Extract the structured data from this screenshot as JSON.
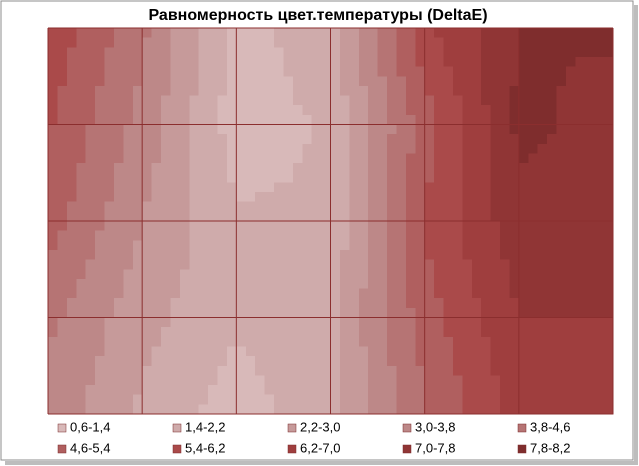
{
  "chart_data": {
    "type": "contour",
    "title": "Равномерность цвет.температуры (DeltaE)",
    "levels": [
      0.6,
      1.4,
      2.2,
      3.0,
      3.8,
      4.6,
      5.4,
      6.2,
      7.0,
      7.8,
      8.2
    ],
    "series": [
      {
        "name": "0,6-1,4",
        "color": "#d8b9b9"
      },
      {
        "name": "1,4-2,2",
        "color": "#cfabab"
      },
      {
        "name": "2,2-3,0",
        "color": "#c69a9a"
      },
      {
        "name": "3,0-3,8",
        "color": "#bd8888"
      },
      {
        "name": "3,8-4,6",
        "color": "#b67474"
      },
      {
        "name": "4,6-5,4",
        "color": "#b05f5f"
      },
      {
        "name": "5,4-6,2",
        "color": "#aa4a4a"
      },
      {
        "name": "6,2-7,0",
        "color": "#9f3e3e"
      },
      {
        "name": "7,0-7,8",
        "color": "#903535"
      },
      {
        "name": "7,8-8,2",
        "color": "#7f2d2d"
      }
    ],
    "z": [
      [
        6.0,
        4.0,
        1.0,
        2.0,
        6.0,
        7.8,
        7.9
      ],
      [
        5.5,
        3.5,
        1.0,
        1.5,
        5.0,
        8.0,
        7.5
      ],
      [
        5.0,
        3.0,
        1.5,
        1.5,
        5.5,
        7.5,
        7.0
      ],
      [
        4.0,
        2.5,
        1.5,
        2.0,
        5.0,
        7.0,
        7.0
      ],
      [
        3.5,
        2.0,
        1.0,
        2.0,
        4.5,
        6.5,
        6.5
      ]
    ]
  }
}
